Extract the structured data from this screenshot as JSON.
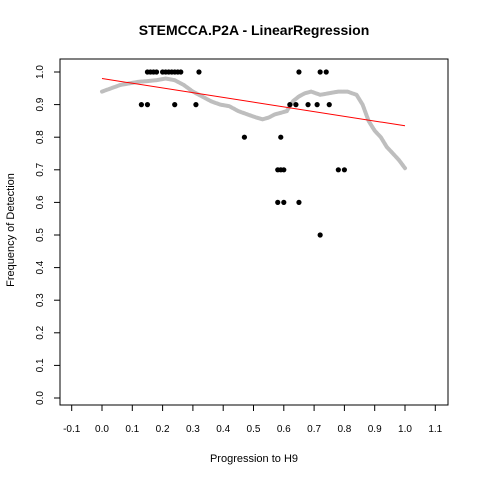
{
  "chart_data": {
    "type": "scatter",
    "title": "STEMCCA.P2A - LinearRegression",
    "xlabel": "Progression to H9",
    "ylabel": "Frequency of Detection",
    "xlim": [
      -0.1,
      1.1
    ],
    "ylim": [
      0.0,
      1.0
    ],
    "xticks": [
      "-0.1",
      "0.0",
      "0.1",
      "0.2",
      "0.3",
      "0.4",
      "0.5",
      "0.6",
      "0.7",
      "0.8",
      "0.9",
      "1.0",
      "1.1"
    ],
    "yticks": [
      "0.0",
      "0.1",
      "0.2",
      "0.3",
      "0.4",
      "0.5",
      "0.6",
      "0.7",
      "0.8",
      "0.9",
      "1.0"
    ],
    "grid": false,
    "legend": "none",
    "colors": {
      "points": "#000000",
      "smooth": "#bebebe",
      "regression": "#ff0000"
    },
    "series": [
      {
        "type": "scatter",
        "points": [
          {
            "x": 0.13,
            "y": 0.9
          },
          {
            "x": 0.15,
            "y": 0.9
          },
          {
            "x": 0.15,
            "y": 1.0
          },
          {
            "x": 0.16,
            "y": 1.0
          },
          {
            "x": 0.17,
            "y": 1.0
          },
          {
            "x": 0.18,
            "y": 1.0
          },
          {
            "x": 0.2,
            "y": 1.0
          },
          {
            "x": 0.21,
            "y": 1.0
          },
          {
            "x": 0.22,
            "y": 1.0
          },
          {
            "x": 0.23,
            "y": 1.0
          },
          {
            "x": 0.24,
            "y": 1.0
          },
          {
            "x": 0.25,
            "y": 1.0
          },
          {
            "x": 0.26,
            "y": 1.0
          },
          {
            "x": 0.24,
            "y": 0.9
          },
          {
            "x": 0.31,
            "y": 0.9
          },
          {
            "x": 0.32,
            "y": 1.0
          },
          {
            "x": 0.47,
            "y": 0.8
          },
          {
            "x": 0.58,
            "y": 0.7
          },
          {
            "x": 0.59,
            "y": 0.7
          },
          {
            "x": 0.6,
            "y": 0.7
          },
          {
            "x": 0.59,
            "y": 0.8
          },
          {
            "x": 0.58,
            "y": 0.6
          },
          {
            "x": 0.6,
            "y": 0.6
          },
          {
            "x": 0.62,
            "y": 0.9
          },
          {
            "x": 0.64,
            "y": 0.9
          },
          {
            "x": 0.65,
            "y": 1.0
          },
          {
            "x": 0.65,
            "y": 0.6
          },
          {
            "x": 0.68,
            "y": 0.9
          },
          {
            "x": 0.71,
            "y": 0.9
          },
          {
            "x": 0.72,
            "y": 1.0
          },
          {
            "x": 0.74,
            "y": 1.0
          },
          {
            "x": 0.75,
            "y": 0.9
          },
          {
            "x": 0.72,
            "y": 0.5
          },
          {
            "x": 0.78,
            "y": 0.7
          },
          {
            "x": 0.8,
            "y": 0.7
          }
        ]
      },
      {
        "type": "line",
        "x": [
          0.0,
          0.03,
          0.06,
          0.09,
          0.12,
          0.15,
          0.18,
          0.21,
          0.24,
          0.27,
          0.3,
          0.33,
          0.36,
          0.39,
          0.42,
          0.45,
          0.48,
          0.51,
          0.53,
          0.55,
          0.57,
          0.59,
          0.61,
          0.63,
          0.65,
          0.67,
          0.69,
          0.72,
          0.75,
          0.78,
          0.81,
          0.84,
          0.86,
          0.88,
          0.9,
          0.92,
          0.94,
          0.96,
          0.98,
          1.0
        ],
        "y": [
          0.94,
          0.95,
          0.96,
          0.965,
          0.97,
          0.972,
          0.975,
          0.98,
          0.975,
          0.96,
          0.94,
          0.925,
          0.91,
          0.9,
          0.895,
          0.88,
          0.87,
          0.86,
          0.855,
          0.86,
          0.87,
          0.875,
          0.88,
          0.91,
          0.925,
          0.935,
          0.94,
          0.93,
          0.935,
          0.94,
          0.94,
          0.93,
          0.9,
          0.85,
          0.82,
          0.8,
          0.77,
          0.75,
          0.73,
          0.705
        ]
      },
      {
        "type": "line",
        "x": [
          0.0,
          1.0
        ],
        "y": [
          0.98,
          0.835
        ]
      }
    ]
  }
}
